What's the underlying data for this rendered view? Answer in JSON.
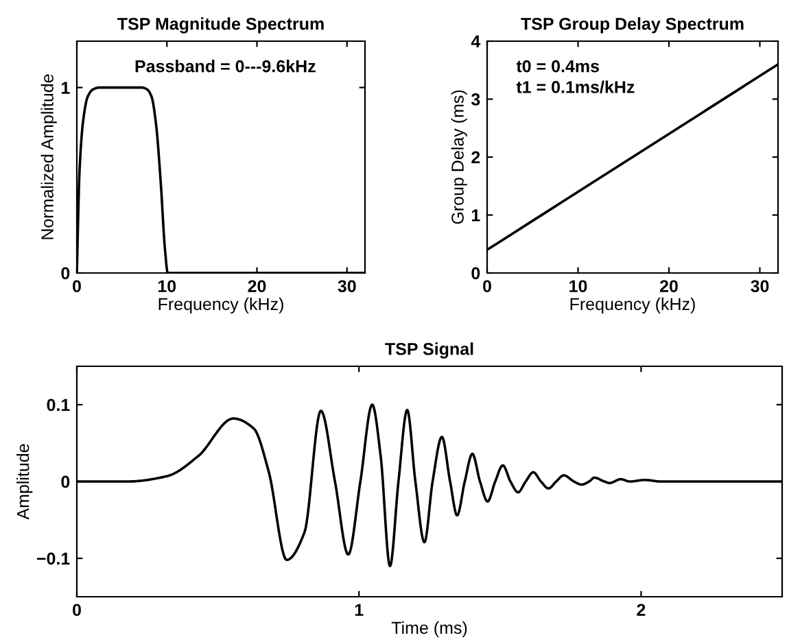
{
  "chart_data": [
    {
      "type": "line",
      "title": "TSP Magnitude Spectrum",
      "xlabel": "Frequency (kHz)",
      "ylabel": "Normalized Amplitude",
      "annotations": [
        "Passband = 0---9.6kHz"
      ],
      "x": [
        0,
        0.3,
        0.7,
        1.2,
        1.8,
        2.5,
        4,
        6,
        7.2,
        7.8,
        8.3,
        8.8,
        9.3,
        9.8,
        10.1,
        32
      ],
      "series": [
        {
          "color": "#000000",
          "values": [
            0,
            0.55,
            0.82,
            0.95,
            0.99,
            1,
            1,
            1,
            1,
            0.99,
            0.95,
            0.8,
            0.5,
            0.12,
            0,
            0
          ]
        }
      ],
      "xlim": [
        0,
        32
      ],
      "ylim": [
        0,
        1.25
      ],
      "xticks": [
        0,
        10,
        20,
        30
      ],
      "yticks": [
        0,
        1
      ],
      "grid": false,
      "legend": false,
      "marker": "none",
      "line_style": "solid"
    },
    {
      "type": "line",
      "title": "TSP Group Delay Spectrum",
      "xlabel": "Frequency (kHz)",
      "ylabel": "Group Delay (ms)",
      "annotations": [
        "t0 = 0.4ms",
        "t1 = 0.1ms/kHz"
      ],
      "x": [
        0,
        32
      ],
      "series": [
        {
          "color": "#000000",
          "values": [
            0.4,
            3.6
          ]
        }
      ],
      "xlim": [
        0,
        32
      ],
      "ylim": [
        0,
        4
      ],
      "xticks": [
        0,
        10,
        20,
        30
      ],
      "yticks": [
        0,
        1,
        2,
        3,
        4
      ],
      "grid": false,
      "legend": false,
      "marker": "none",
      "line_style": "solid"
    },
    {
      "type": "line",
      "title": "TSP Signal",
      "xlabel": "Time (ms)",
      "ylabel": "Amplitude",
      "x": [
        0,
        0.18,
        0.32,
        0.43,
        0.555,
        0.627,
        0.68,
        0.744,
        0.807,
        0.865,
        0.915,
        0.962,
        1.005,
        1.047,
        1.077,
        1.11,
        1.14,
        1.171,
        1.2,
        1.232,
        1.261,
        1.294,
        1.323,
        1.348,
        1.375,
        1.402,
        1.429,
        1.456,
        1.483,
        1.51,
        1.537,
        1.564,
        1.591,
        1.618,
        1.645,
        1.672,
        1.699,
        1.726,
        1.762,
        1.789,
        1.816,
        1.834,
        1.87,
        1.888,
        1.928,
        1.96,
        2.014,
        2.07,
        2.5
      ],
      "series": [
        {
          "color": "#000000",
          "values": [
            0,
            0,
            0.007,
            0.033,
            0.082,
            0.069,
            0.013,
            -0.102,
            -0.066,
            0.092,
            0,
            -0.095,
            0,
            0.1,
            0.033,
            -0.11,
            0,
            0.093,
            0,
            -0.079,
            0,
            0.058,
            0,
            -0.044,
            0,
            0.036,
            0,
            -0.026,
            0,
            0.021,
            0,
            -0.014,
            0,
            0.012,
            0,
            -0.009,
            0,
            0.008,
            0,
            -0.004,
            0,
            0.005,
            0,
            -0.002,
            0.003,
            0,
            0.002,
            0,
            0
          ]
        }
      ],
      "xlim": [
        0,
        2.5
      ],
      "ylim": [
        -0.15,
        0.15
      ],
      "xticks": [
        0,
        1,
        2
      ],
      "yticks": [
        {
          "value": -0.1,
          "label": "−0.1"
        },
        0,
        0.1
      ],
      "grid": false,
      "legend": false,
      "marker": "none",
      "line_style": "solid"
    }
  ]
}
